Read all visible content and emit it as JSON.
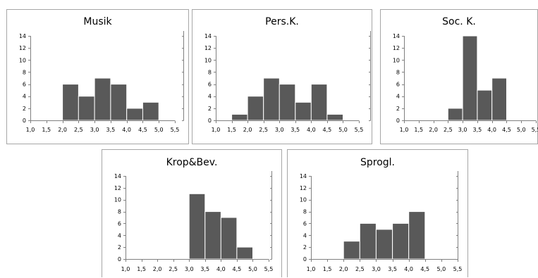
{
  "chart_data": [
    {
      "type": "bar",
      "title": "Musik",
      "xlabel": "",
      "ylabel": "",
      "x_ticks": [
        "1,0",
        "1,5",
        "2,0",
        "2,5",
        "3,0",
        "3,5",
        "4,0",
        "4,5",
        "5,0",
        "5,5"
      ],
      "y_ticks": [
        "0",
        "2",
        "4",
        "6",
        "8",
        "10",
        "12",
        "14"
      ],
      "ylim": [
        0,
        14
      ],
      "bins": [
        {
          "from": 2.0,
          "to": 2.5,
          "value": 6
        },
        {
          "from": 2.5,
          "to": 3.0,
          "value": 4
        },
        {
          "from": 3.0,
          "to": 3.5,
          "value": 7
        },
        {
          "from": 3.5,
          "to": 4.0,
          "value": 6
        },
        {
          "from": 4.0,
          "to": 4.5,
          "value": 2
        },
        {
          "from": 4.5,
          "to": 5.0,
          "value": 3
        }
      ],
      "grid": false
    },
    {
      "type": "bar",
      "title": "Pers.K.",
      "xlabel": "",
      "ylabel": "",
      "x_ticks": [
        "1,0",
        "1,5",
        "2,0",
        "2,5",
        "3,0",
        "3,5",
        "4,0",
        "4,5",
        "5,0",
        "5,5"
      ],
      "y_ticks": [
        "0",
        "2",
        "4",
        "6",
        "8",
        "10",
        "12",
        "14"
      ],
      "ylim": [
        0,
        14
      ],
      "bins": [
        {
          "from": 1.5,
          "to": 2.0,
          "value": 1
        },
        {
          "from": 2.0,
          "to": 2.5,
          "value": 4
        },
        {
          "from": 2.5,
          "to": 3.0,
          "value": 7
        },
        {
          "from": 3.0,
          "to": 3.5,
          "value": 6
        },
        {
          "from": 3.5,
          "to": 4.0,
          "value": 3
        },
        {
          "from": 4.0,
          "to": 4.5,
          "value": 6
        },
        {
          "from": 4.5,
          "to": 5.0,
          "value": 1
        }
      ],
      "grid": false
    },
    {
      "type": "bar",
      "title": "Soc. K.",
      "xlabel": "",
      "ylabel": "",
      "x_ticks": [
        "1,0",
        "1,5",
        "2,0",
        "2,5",
        "3,0",
        "3,5",
        "4,0",
        "4,5",
        "5,0",
        "5,5"
      ],
      "y_ticks": [
        "0",
        "2",
        "4",
        "6",
        "8",
        "10",
        "12",
        "14"
      ],
      "ylim": [
        0,
        14
      ],
      "bins": [
        {
          "from": 2.5,
          "to": 3.0,
          "value": 2
        },
        {
          "from": 3.0,
          "to": 3.5,
          "value": 14
        },
        {
          "from": 3.5,
          "to": 4.0,
          "value": 5
        },
        {
          "from": 4.0,
          "to": 4.5,
          "value": 7
        }
      ],
      "grid": false
    },
    {
      "type": "bar",
      "title": "Krop&Bev.",
      "xlabel": "",
      "ylabel": "",
      "x_ticks": [
        "1,0",
        "1,5",
        "2,0",
        "2,5",
        "3,0",
        "3,5",
        "4,0",
        "4,5",
        "5,0",
        "5,5"
      ],
      "y_ticks": [
        "0",
        "2",
        "4",
        "6",
        "8",
        "10",
        "12",
        "14"
      ],
      "ylim": [
        0,
        14
      ],
      "bins": [
        {
          "from": 3.0,
          "to": 3.5,
          "value": 11
        },
        {
          "from": 3.5,
          "to": 4.0,
          "value": 8
        },
        {
          "from": 4.0,
          "to": 4.5,
          "value": 7
        },
        {
          "from": 4.5,
          "to": 5.0,
          "value": 2
        }
      ],
      "grid": false
    },
    {
      "type": "bar",
      "title": "Sprogl.",
      "xlabel": "",
      "ylabel": "",
      "x_ticks": [
        "1,0",
        "1,5",
        "2,0",
        "2,5",
        "3,0",
        "3,5",
        "4,0",
        "4,5",
        "5,0",
        "5,5"
      ],
      "y_ticks": [
        "0",
        "2",
        "4",
        "6",
        "8",
        "10",
        "12",
        "14"
      ],
      "ylim": [
        0,
        14
      ],
      "bins": [
        {
          "from": 2.0,
          "to": 2.5,
          "value": 3
        },
        {
          "from": 2.5,
          "to": 3.0,
          "value": 6
        },
        {
          "from": 3.0,
          "to": 3.5,
          "value": 5
        },
        {
          "from": 3.5,
          "to": 4.0,
          "value": 6
        },
        {
          "from": 4.0,
          "to": 4.5,
          "value": 8
        }
      ],
      "grid": false
    }
  ],
  "colors": {
    "bar_fill": "#595959",
    "axis": "#808080",
    "frame": "#a6a6a6"
  }
}
